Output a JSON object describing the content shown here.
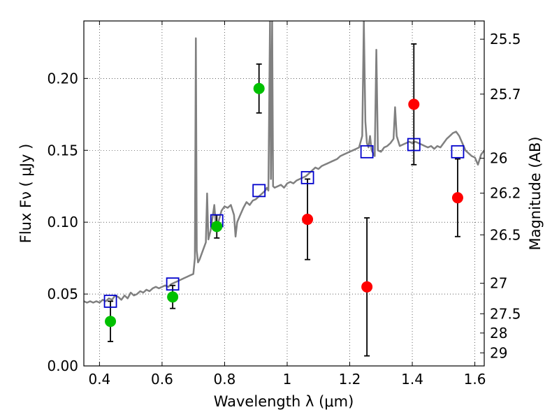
{
  "chart_data": {
    "type": "scatter",
    "xlabel": "Wavelength  λ (μm)",
    "ylabel": "Flux  Fν  ( μJy )",
    "ylabel_right": "Magnitude (AB)",
    "xlim": [
      0.35,
      1.63
    ],
    "ylim": [
      0.0,
      0.24
    ],
    "grid": true,
    "x_ticks": [
      {
        "value": 0.4,
        "label": "0.4"
      },
      {
        "value": 0.6,
        "label": "0.6"
      },
      {
        "value": 0.8,
        "label": "0.8"
      },
      {
        "value": 1.0,
        "label": "1"
      },
      {
        "value": 1.2,
        "label": "1.2"
      },
      {
        "value": 1.4,
        "label": "1.4"
      },
      {
        "value": 1.6,
        "label": "1.6"
      }
    ],
    "y_ticks": [
      {
        "value": 0.0,
        "label": "0.00"
      },
      {
        "value": 0.05,
        "label": "0.05"
      },
      {
        "value": 0.1,
        "label": "0.10"
      },
      {
        "value": 0.15,
        "label": "0.15"
      },
      {
        "value": 0.2,
        "label": "0.20"
      }
    ],
    "right_ticks": [
      {
        "flux": 0.2273,
        "label": "25.5"
      },
      {
        "flux": 0.1891,
        "label": "25.7"
      },
      {
        "flux": 0.1445,
        "label": "26"
      },
      {
        "flux": 0.1202,
        "label": "26.2"
      },
      {
        "flux": 0.0912,
        "label": "26.5"
      },
      {
        "flux": 0.0575,
        "label": "27"
      },
      {
        "flux": 0.0363,
        "label": "27.5"
      },
      {
        "flux": 0.0229,
        "label": "28"
      },
      {
        "flux": 0.0091,
        "label": "29"
      }
    ],
    "colors": {
      "spectrum": "#808080",
      "optical": "#00c000",
      "infrared": "#ff0000",
      "model": "#0000cc",
      "errorbar": "#000000"
    },
    "spectrum": [
      [
        0.35,
        0.045
      ],
      [
        0.36,
        0.044
      ],
      [
        0.37,
        0.045
      ],
      [
        0.38,
        0.044
      ],
      [
        0.39,
        0.045
      ],
      [
        0.4,
        0.044
      ],
      [
        0.41,
        0.046
      ],
      [
        0.42,
        0.045
      ],
      [
        0.43,
        0.047
      ],
      [
        0.44,
        0.046
      ],
      [
        0.45,
        0.049
      ],
      [
        0.46,
        0.048
      ],
      [
        0.47,
        0.046
      ],
      [
        0.48,
        0.049
      ],
      [
        0.49,
        0.047
      ],
      [
        0.5,
        0.051
      ],
      [
        0.51,
        0.049
      ],
      [
        0.52,
        0.05
      ],
      [
        0.53,
        0.052
      ],
      [
        0.54,
        0.051
      ],
      [
        0.55,
        0.053
      ],
      [
        0.56,
        0.052
      ],
      [
        0.57,
        0.054
      ],
      [
        0.58,
        0.055
      ],
      [
        0.59,
        0.054
      ],
      [
        0.6,
        0.055
      ],
      [
        0.61,
        0.056
      ],
      [
        0.62,
        0.055
      ],
      [
        0.63,
        0.057
      ],
      [
        0.64,
        0.058
      ],
      [
        0.65,
        0.059
      ],
      [
        0.66,
        0.06
      ],
      [
        0.67,
        0.061
      ],
      [
        0.68,
        0.062
      ],
      [
        0.69,
        0.063
      ],
      [
        0.7,
        0.064
      ],
      [
        0.705,
        0.075
      ],
      [
        0.708,
        0.228
      ],
      [
        0.711,
        0.08
      ],
      [
        0.715,
        0.072
      ],
      [
        0.72,
        0.074
      ],
      [
        0.73,
        0.08
      ],
      [
        0.74,
        0.086
      ],
      [
        0.744,
        0.12
      ],
      [
        0.748,
        0.088
      ],
      [
        0.755,
        0.094
      ],
      [
        0.762,
        0.104
      ],
      [
        0.767,
        0.112
      ],
      [
        0.773,
        0.095
      ],
      [
        0.78,
        0.1
      ],
      [
        0.79,
        0.108
      ],
      [
        0.8,
        0.111
      ],
      [
        0.81,
        0.11
      ],
      [
        0.82,
        0.112
      ],
      [
        0.83,
        0.105
      ],
      [
        0.835,
        0.09
      ],
      [
        0.84,
        0.1
      ],
      [
        0.85,
        0.105
      ],
      [
        0.86,
        0.11
      ],
      [
        0.87,
        0.114
      ],
      [
        0.88,
        0.112
      ],
      [
        0.89,
        0.115
      ],
      [
        0.9,
        0.116
      ],
      [
        0.91,
        0.118
      ],
      [
        0.92,
        0.12
      ],
      [
        0.93,
        0.122
      ],
      [
        0.935,
        0.124
      ],
      [
        0.94,
        0.122
      ],
      [
        0.945,
        0.24
      ],
      [
        0.948,
        0.13
      ],
      [
        0.952,
        0.24
      ],
      [
        0.955,
        0.125
      ],
      [
        0.96,
        0.124
      ],
      [
        0.97,
        0.125
      ],
      [
        0.98,
        0.126
      ],
      [
        0.99,
        0.124
      ],
      [
        1.0,
        0.127
      ],
      [
        1.01,
        0.128
      ],
      [
        1.02,
        0.127
      ],
      [
        1.03,
        0.129
      ],
      [
        1.04,
        0.13
      ],
      [
        1.05,
        0.131
      ],
      [
        1.06,
        0.132
      ],
      [
        1.07,
        0.134
      ],
      [
        1.08,
        0.136
      ],
      [
        1.09,
        0.138
      ],
      [
        1.1,
        0.137
      ],
      [
        1.11,
        0.139
      ],
      [
        1.12,
        0.14
      ],
      [
        1.13,
        0.141
      ],
      [
        1.14,
        0.142
      ],
      [
        1.15,
        0.143
      ],
      [
        1.16,
        0.144
      ],
      [
        1.17,
        0.146
      ],
      [
        1.18,
        0.147
      ],
      [
        1.19,
        0.148
      ],
      [
        1.2,
        0.149
      ],
      [
        1.21,
        0.15
      ],
      [
        1.22,
        0.151
      ],
      [
        1.23,
        0.152
      ],
      [
        1.24,
        0.16
      ],
      [
        1.245,
        0.24
      ],
      [
        1.25,
        0.17
      ],
      [
        1.255,
        0.155
      ],
      [
        1.26,
        0.152
      ],
      [
        1.265,
        0.16
      ],
      [
        1.27,
        0.15
      ],
      [
        1.28,
        0.146
      ],
      [
        1.285,
        0.22
      ],
      [
        1.29,
        0.15
      ],
      [
        1.3,
        0.149
      ],
      [
        1.31,
        0.152
      ],
      [
        1.32,
        0.153
      ],
      [
        1.33,
        0.155
      ],
      [
        1.34,
        0.158
      ],
      [
        1.345,
        0.18
      ],
      [
        1.35,
        0.16
      ],
      [
        1.36,
        0.153
      ],
      [
        1.37,
        0.154
      ],
      [
        1.38,
        0.155
      ],
      [
        1.39,
        0.156
      ],
      [
        1.4,
        0.155
      ],
      [
        1.41,
        0.156
      ],
      [
        1.42,
        0.155
      ],
      [
        1.43,
        0.154
      ],
      [
        1.44,
        0.153
      ],
      [
        1.45,
        0.152
      ],
      [
        1.46,
        0.153
      ],
      [
        1.47,
        0.151
      ],
      [
        1.48,
        0.153
      ],
      [
        1.49,
        0.152
      ],
      [
        1.5,
        0.155
      ],
      [
        1.51,
        0.158
      ],
      [
        1.52,
        0.16
      ],
      [
        1.53,
        0.162
      ],
      [
        1.54,
        0.163
      ],
      [
        1.55,
        0.16
      ],
      [
        1.56,
        0.155
      ],
      [
        1.57,
        0.15
      ],
      [
        1.58,
        0.148
      ],
      [
        1.59,
        0.146
      ],
      [
        1.6,
        0.145
      ],
      [
        1.61,
        0.14
      ],
      [
        1.62,
        0.147
      ],
      [
        1.63,
        0.15
      ]
    ],
    "optical_points": [
      {
        "x": 0.435,
        "y": 0.031,
        "err": 0.014
      },
      {
        "x": 0.634,
        "y": 0.048,
        "err": 0.008
      },
      {
        "x": 0.775,
        "y": 0.097,
        "err": 0.008
      },
      {
        "x": 0.91,
        "y": 0.193,
        "err": 0.017
      }
    ],
    "infrared_points": [
      {
        "x": 1.065,
        "y": 0.102,
        "err": 0.028
      },
      {
        "x": 1.255,
        "y": 0.055,
        "err": 0.048
      },
      {
        "x": 1.405,
        "y": 0.182,
        "err": 0.042
      },
      {
        "x": 1.545,
        "y": 0.117,
        "err": 0.027
      }
    ],
    "model_points": [
      {
        "x": 0.435,
        "y": 0.045
      },
      {
        "x": 0.634,
        "y": 0.057
      },
      {
        "x": 0.775,
        "y": 0.101
      },
      {
        "x": 0.91,
        "y": 0.122
      },
      {
        "x": 1.065,
        "y": 0.131
      },
      {
        "x": 1.255,
        "y": 0.149
      },
      {
        "x": 1.405,
        "y": 0.154
      },
      {
        "x": 1.545,
        "y": 0.149
      }
    ]
  }
}
